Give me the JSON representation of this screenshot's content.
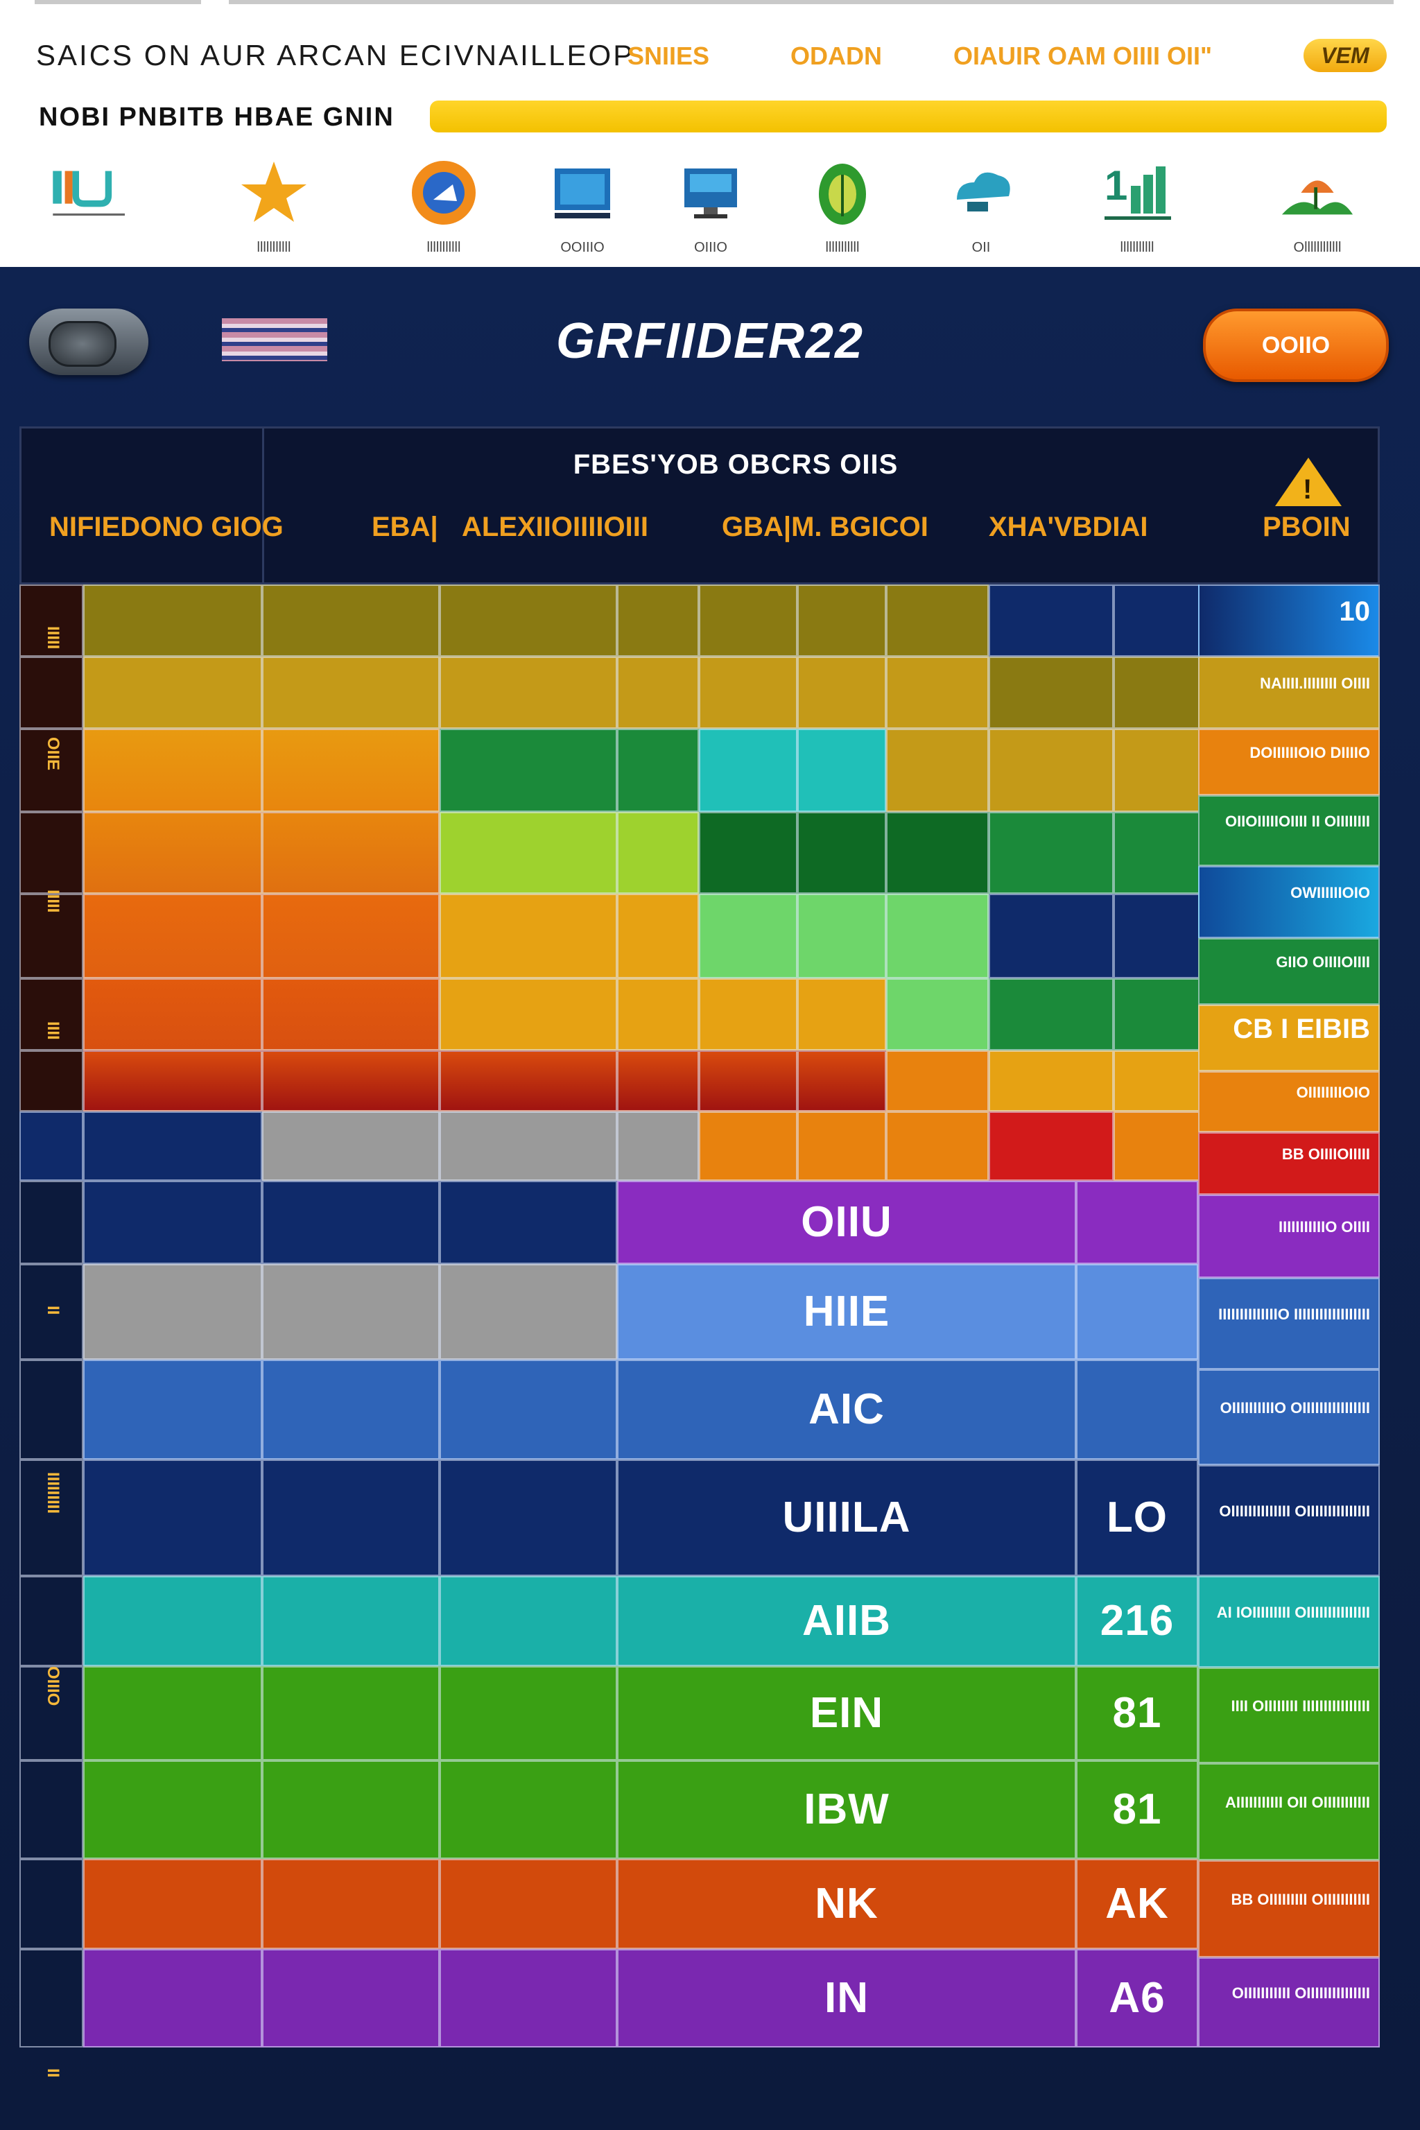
{
  "header": {
    "title": "SAICS ON AUR ARCAN ECIVNAILLEOP",
    "links": [
      "SNIIES",
      "ODADN",
      "OIAUIR OAM OIIII OII\""
    ],
    "badge": "VEM"
  },
  "progress": {
    "label": "NOBI PNBITB HBAE GNIN",
    "value_percent": 100
  },
  "apps": [
    {
      "icon": "chart-logo-icon",
      "label": ""
    },
    {
      "icon": "star-icon",
      "label": "lllllllllll"
    },
    {
      "icon": "browser-icon",
      "label": "lllllllllll"
    },
    {
      "icon": "monitor-icon",
      "label": "OOIIIO"
    },
    {
      "icon": "desktop-icon",
      "label": "OIIIO"
    },
    {
      "icon": "leaf-icon",
      "label": "lllllllllll"
    },
    {
      "icon": "cloud-icon",
      "label": "OII"
    },
    {
      "icon": "growth-chart-icon",
      "label": "lllllllllll"
    },
    {
      "icon": "landscape-icon",
      "label": "Ollllllllllll"
    }
  ],
  "panel": {
    "title": "GRFIIDER22",
    "button": "OOIIO"
  },
  "table": {
    "title": "FBES'YOB OBCRS OIIS",
    "columns": [
      "NIFIEDONO GIOG",
      "EBA|",
      "ALEXIIOIIIIOIII",
      "GBA|M. BGICOI",
      "XHA'VBDIAI",
      "PBOIN"
    ],
    "side_labels": [
      "10",
      "NAIIII.IIIIIIII OIIII",
      "DOIIIIIIOIO DIIIIO",
      "OIIOIIIIIOIIII II OIIIIIIII",
      "OWIIIIIIOIO",
      "GIIO OIIIIOIIII",
      "CB I EIBIB",
      "OIIIIIIIIOIO",
      "BB OIIIIOIIIII",
      "IIIIIIIIIIIO OIIII",
      "IIIIIIIIIIIIIIO IIIIIIIIIIIIIIIIII",
      "OIIIIIIIIIIO OIIIIIIIIIIIIIIII",
      "OIIIIIIIIIIIIII OIIIIIIIIIIIIIII",
      "AI IOIIIIIIIII OIIIIIIIIIIIIIII",
      "IIII OIIIIIIII IIIIIIIIIIIIIIII",
      "AIIIIIIIIIII OII OIIIIIIIIIII",
      "BB OIIIIIIIII OIIIIIIIIIII",
      "OIIIIIIIIIII OIIIIIIIIIIIIIII"
    ],
    "row_labels": [
      "OIIU",
      "HIIE",
      "AIC",
      "UIIILA",
      "AIIB",
      "EIN",
      "IBW",
      "NK",
      "IN"
    ],
    "row_values": [
      "",
      "",
      "",
      "LO",
      "216",
      "81",
      "81",
      "AK",
      "A6"
    ],
    "left_tags": [
      "IIIII",
      "OIIE",
      "IIIII",
      "IIII",
      "II",
      "IIIIIIIII",
      "OIIIO",
      "II"
    ]
  }
}
